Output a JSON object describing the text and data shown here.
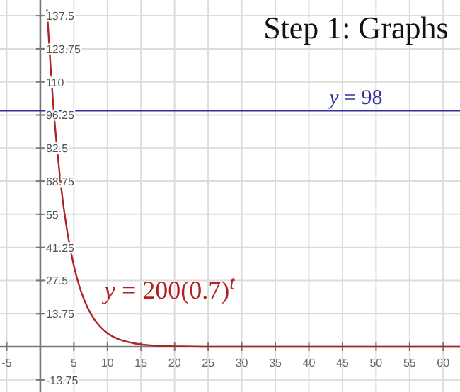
{
  "chart_data": {
    "type": "line",
    "title": "Step 1: Graphs",
    "xlim": [
      -6,
      62.5
    ],
    "ylim": [
      -18.8,
      144
    ],
    "xticks": [
      -5,
      5,
      10,
      15,
      20,
      25,
      30,
      35,
      40,
      45,
      50,
      55,
      60
    ],
    "yticks": [
      -13.75,
      13.75,
      27.5,
      41.25,
      55,
      68.75,
      82.5,
      96.25,
      110,
      123.75,
      137.5
    ],
    "grid": true,
    "ref_lines": [
      {
        "axis": "y",
        "value": 98,
        "label": "y = 98",
        "color": "#33339a"
      }
    ],
    "series": [
      {
        "name": "y = 200(0.7)$^{t}$",
        "color": "#b22222",
        "x": [
          1,
          2,
          3,
          4,
          5,
          6,
          7,
          8,
          9,
          10,
          12,
          14,
          16,
          18,
          20,
          25,
          30,
          40,
          50,
          62.5
        ],
        "values": [
          140,
          98,
          68.6,
          48,
          33.6,
          23.5,
          16.5,
          11.5,
          8.1,
          5.6,
          2.8,
          1.4,
          0.7,
          0.3,
          0.2,
          0,
          0,
          0,
          0,
          0
        ]
      }
    ]
  }
}
